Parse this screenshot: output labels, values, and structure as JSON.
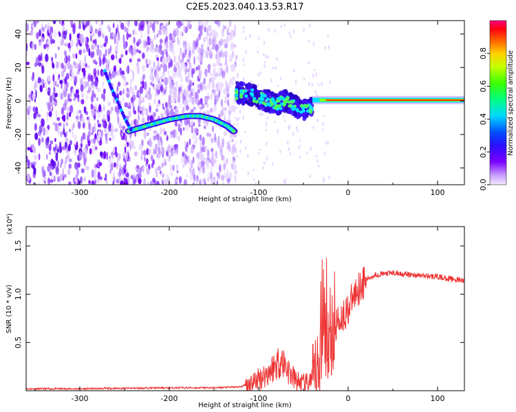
{
  "chart_data": [
    {
      "type": "heatmap",
      "title": "C2E5.2023.040.13.53.R17",
      "xlabel": "Height of straight line (km)",
      "ylabel": "Frequency (Hz)",
      "xlim": [
        -360,
        130
      ],
      "ylim": [
        -50,
        48
      ],
      "x_ticks": [
        -300,
        -200,
        -100,
        0,
        100
      ],
      "y_ticks": [
        -40,
        -20,
        0,
        20,
        40
      ],
      "colorbar": {
        "label": "Normalized spectral amplitude",
        "range": [
          0,
          1
        ],
        "ticks": [
          "0.0",
          "0.2",
          "0.4",
          "0.6",
          "0.8"
        ]
      },
      "features": {
        "noise_region_x": [
          -360,
          -125
        ],
        "arc_trace": [
          [
            -245,
            -18
          ],
          [
            -220,
            -14
          ],
          [
            -200,
            -11
          ],
          [
            -180,
            -9
          ],
          [
            -165,
            -9
          ],
          [
            -150,
            -11
          ],
          [
            -135,
            -15
          ],
          [
            -128,
            -18
          ]
        ],
        "steep_trace": [
          [
            -272,
            18
          ],
          [
            -265,
            8
          ],
          [
            -258,
            0
          ],
          [
            -250,
            -10
          ],
          [
            -243,
            -17
          ]
        ],
        "turbulent_band": [
          [
            -125,
            5
          ],
          [
            -110,
            4
          ],
          [
            -100,
            2
          ],
          [
            -90,
            0
          ],
          [
            -80,
            -2
          ],
          [
            -70,
            0
          ],
          [
            -60,
            -3
          ],
          [
            -50,
            -5
          ],
          [
            -40,
            -3
          ]
        ],
        "steady_line": {
          "x_start": -40,
          "x_end": 130,
          "frequency": 0.5
        }
      }
    },
    {
      "type": "line",
      "xlabel": "Height of straight line (km)",
      "ylabel": "SNR (10 * v/v)",
      "y_multiplier": "(x10⁴)",
      "xlim": [
        -360,
        130
      ],
      "ylim": [
        0,
        1.7
      ],
      "x_ticks": [
        -300,
        -200,
        -100,
        0,
        100
      ],
      "y_ticks": [
        0.5,
        1.0,
        1.5
      ],
      "y_tick_labels": [
        "0.5",
        "1.0",
        "1.5"
      ],
      "line_color": "#ee3333",
      "series": [
        {
          "x": [
            -360,
            -300,
            -200,
            -150,
            -120,
            -110,
            -100,
            -90,
            -80,
            -75,
            -70,
            -65,
            -60,
            -55,
            -50,
            -45,
            -40,
            -35,
            -32,
            -30,
            -28,
            -26,
            -25,
            -22,
            -20,
            -15,
            -10,
            -5,
            0,
            5,
            10,
            20,
            30,
            50,
            70,
            100,
            120,
            130
          ],
          "y": [
            0.02,
            0.02,
            0.03,
            0.03,
            0.04,
            0.08,
            0.12,
            0.18,
            0.28,
            0.32,
            0.26,
            0.18,
            0.12,
            0.09,
            0.07,
            0.08,
            0.12,
            0.2,
            0.4,
            0.7,
            1.1,
            0.9,
            0.45,
            0.55,
            0.6,
            0.65,
            0.75,
            0.78,
            0.85,
            0.95,
            1.05,
            1.15,
            1.2,
            1.22,
            1.2,
            1.18,
            1.15,
            1.14
          ]
        }
      ]
    }
  ]
}
